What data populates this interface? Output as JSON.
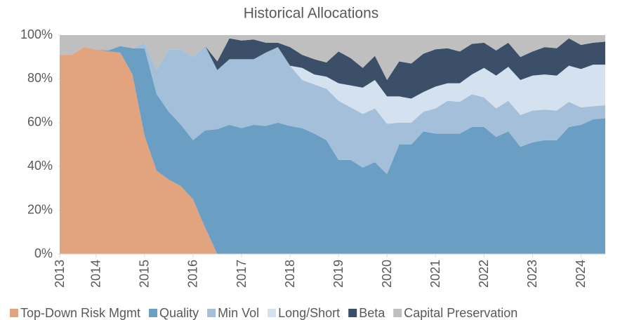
{
  "chart_data": {
    "type": "stacked_area",
    "title": "Historical Allocations",
    "x": [
      2013.25,
      2013.5,
      2013.75,
      2014,
      2014.25,
      2014.5,
      2014.75,
      2015,
      2015.25,
      2015.5,
      2015.75,
      2016,
      2016.25,
      2016.5,
      2016.75,
      2017,
      2017.25,
      2017.5,
      2017.75,
      2018,
      2018.25,
      2018.5,
      2018.75,
      2019,
      2019.25,
      2019.5,
      2019.75,
      2020,
      2020.25,
      2020.5,
      2020.75,
      2021,
      2021.25,
      2021.5,
      2021.75,
      2022,
      2022.25,
      2022.5,
      2022.75,
      2023,
      2023.25,
      2023.5,
      2023.75,
      2024,
      2024.25,
      2024.5
    ],
    "xlim": [
      2013.25,
      2024.5
    ],
    "xticks": [
      {
        "value": 2013.25,
        "label": "2013"
      },
      2014,
      2015,
      2016,
      2017,
      2018,
      2019,
      2020,
      2021,
      2022,
      2023,
      2024
    ],
    "ylim": [
      0,
      100
    ],
    "yticks": [
      {
        "value": 0,
        "label": "0%"
      },
      {
        "value": 20,
        "label": "20%"
      },
      {
        "value": 40,
        "label": "40%"
      },
      {
        "value": 60,
        "label": "60%"
      },
      {
        "value": 80,
        "label": "80%"
      },
      {
        "value": 100,
        "label": "100%"
      }
    ],
    "legend": "bottom",
    "series": [
      {
        "name": "Top-Down Risk Mgmt",
        "color": "#e2a47e",
        "values": [
          91,
          91,
          94.5,
          93.5,
          92.5,
          92,
          82,
          54,
          38,
          34,
          31,
          25,
          12,
          0,
          0,
          0,
          0,
          0,
          0,
          0,
          0,
          0,
          0,
          0,
          0,
          0,
          0,
          0,
          0,
          0,
          0,
          0,
          0,
          0,
          0,
          0,
          0,
          0,
          0,
          0,
          0,
          0,
          0,
          0,
          0,
          0
        ]
      },
      {
        "name": "Quality",
        "color": "#6a9ec3",
        "values": [
          0,
          0,
          0,
          0,
          0.5,
          3,
          12,
          40,
          35,
          31,
          28,
          27,
          44.5,
          57,
          59,
          57.5,
          59,
          58.5,
          60,
          58.5,
          57.5,
          55,
          52,
          43,
          43,
          39.5,
          42,
          36.5,
          50,
          50,
          56,
          55,
          55,
          55,
          58,
          58,
          53.5,
          56,
          49,
          51,
          52,
          52,
          58,
          59,
          61.5,
          62
        ]
      },
      {
        "name": "Min Vol",
        "color": "#a3bfd9",
        "values": [
          0,
          0,
          0,
          0,
          0,
          0,
          0,
          2.5,
          11,
          28.5,
          34.5,
          38,
          38.5,
          27,
          30,
          31.5,
          30,
          33.5,
          34.5,
          27.5,
          22,
          22.5,
          23.5,
          27,
          24,
          24.5,
          24.5,
          23,
          10,
          10,
          9,
          11.5,
          15,
          14.5,
          15,
          13.5,
          13,
          14,
          14.5,
          14.5,
          14,
          13.5,
          11.5,
          8,
          6,
          6
        ]
      },
      {
        "name": "Long/Short",
        "color": "#d4e1ee",
        "values": [
          0,
          0,
          0,
          0,
          0,
          0,
          0,
          0,
          0,
          0,
          0,
          0,
          0,
          0,
          0,
          0,
          0,
          0,
          0,
          0,
          5.5,
          4.5,
          5.5,
          8,
          10,
          12,
          13,
          12.5,
          12,
          11,
          9,
          10,
          8,
          8.5,
          9,
          13.5,
          15,
          15.5,
          16,
          16,
          16,
          16,
          16.5,
          17.5,
          19,
          18.5
        ]
      },
      {
        "name": "Beta",
        "color": "#3b5068",
        "values": [
          0,
          0,
          0,
          0,
          0,
          0,
          0,
          0,
          0,
          0,
          0,
          0,
          0,
          4,
          9.5,
          8.5,
          9,
          4.5,
          2,
          8.5,
          6,
          7,
          6.5,
          14.5,
          12.5,
          9,
          11,
          7.5,
          16,
          16,
          17.5,
          17,
          16,
          14.5,
          14,
          11.5,
          11.5,
          11,
          10.5,
          11,
          12.5,
          12.5,
          12.5,
          11,
          10,
          10.5
        ]
      },
      {
        "name": "Capital Preservation",
        "color": "#bfbfbf",
        "values": [
          9,
          9,
          5.5,
          6.5,
          7,
          5,
          6,
          3.5,
          16,
          6.5,
          6.5,
          10,
          5,
          12,
          1.5,
          2.5,
          2,
          3.5,
          3.5,
          5.5,
          9,
          11,
          12.5,
          7.5,
          10.5,
          15,
          9.5,
          20.5,
          12,
          13,
          8.5,
          6.5,
          6,
          7.5,
          4,
          3.5,
          7,
          3.5,
          10,
          7.5,
          5.5,
          6,
          1.5,
          4.5,
          3.5,
          3
        ]
      }
    ]
  }
}
